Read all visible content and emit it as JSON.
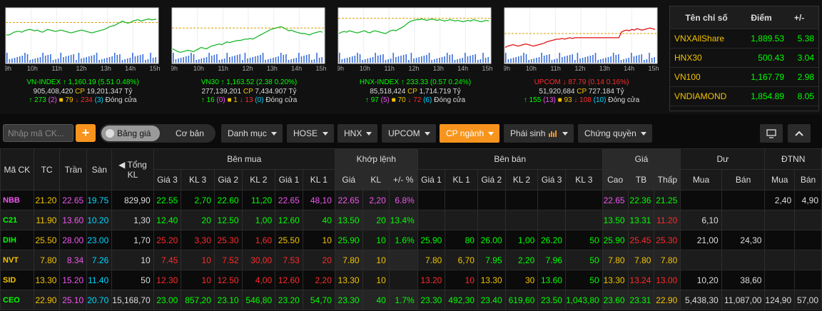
{
  "indices": [
    {
      "name": "VN-INDEX",
      "value": "1,160.19",
      "change": "(5.51 0.48%)",
      "dir": "up",
      "vol": "905,408,420",
      "cp": "CP",
      "amount": "19,201.347 Tỷ",
      "adv": "273",
      "ceil": "(2)",
      "unch": "79",
      "dec": "234",
      "floor": "(3)",
      "status": "Đóng cửa",
      "ref": 58,
      "series": [
        40,
        40,
        42,
        44,
        45,
        45,
        44,
        46,
        47,
        48,
        47,
        46,
        47,
        45,
        44,
        46,
        48,
        47,
        46,
        45,
        46,
        47,
        46,
        45,
        44,
        43,
        44,
        45,
        46,
        47,
        46,
        45,
        44,
        43,
        44,
        45,
        46,
        47,
        48,
        50,
        52,
        53,
        54,
        56,
        58,
        60,
        58,
        57,
        58,
        60,
        61,
        62,
        60,
        61,
        62,
        63,
        62,
        62,
        63
      ]
    },
    {
      "name": "VN30",
      "value": "1,163.52",
      "change": "(2.38 0.20%)",
      "dir": "up",
      "vol": "277,139,201",
      "cp": "CP",
      "amount": "7,434.907 Tỷ",
      "adv": "16",
      "ceil": "(0)",
      "unch": "1",
      "dec": "13",
      "floor": "(0)",
      "status": "Đóng cửa",
      "ref": 50,
      "series": [
        20,
        18,
        16,
        15,
        16,
        17,
        18,
        17,
        16,
        18,
        20,
        22,
        21,
        20,
        22,
        24,
        25,
        26,
        27,
        26,
        28,
        30,
        29,
        30,
        31,
        32,
        32,
        33,
        34,
        34,
        35,
        34,
        36,
        38,
        40,
        42,
        44,
        46,
        48,
        49,
        50,
        51,
        52,
        50,
        48,
        46,
        47,
        45,
        44,
        43,
        42,
        42,
        41,
        40,
        42,
        43,
        44,
        45,
        44
      ]
    },
    {
      "name": "HNX-INDEX",
      "value": "233.33",
      "change": "(0.57 0.24%)",
      "dir": "up",
      "vol": "85,518,424",
      "cp": "CP",
      "amount": "1,714.719 Tỷ",
      "adv": "97",
      "ceil": "(5)",
      "unch": "70",
      "dec": "72",
      "floor": "(6)",
      "status": "Đóng cửa",
      "ref": 64,
      "series": [
        42,
        44,
        45,
        44,
        46,
        45,
        44,
        43,
        44,
        45,
        46,
        44,
        43,
        45,
        46,
        45,
        44,
        43,
        42,
        44,
        46,
        47,
        46,
        48,
        50,
        52,
        55,
        58,
        60,
        61,
        62,
        62,
        63,
        62,
        61,
        62,
        63,
        62,
        61,
        62,
        61,
        60,
        61,
        62,
        61,
        60,
        61,
        60,
        59,
        60,
        61,
        60,
        62,
        61,
        60,
        59,
        60,
        61,
        60
      ]
    },
    {
      "name": "UPCOM",
      "value": "87.79",
      "change": "(0.14 0.16%)",
      "dir": "dn",
      "vol": "51,920,684",
      "cp": "CP",
      "amount": "727.184 Tỷ",
      "adv": "155",
      "ceil": "(13)",
      "unch": "93",
      "dec": "108",
      "floor": "(10)",
      "status": "Đóng cửa",
      "ref": 42,
      "series": [
        22,
        24,
        25,
        26,
        25,
        24,
        25,
        26,
        27,
        26,
        25,
        24,
        25,
        26,
        27,
        28,
        30,
        31,
        32,
        33,
        34,
        34,
        35,
        34,
        35,
        36,
        35,
        36,
        36,
        36,
        36,
        36,
        36,
        36,
        36,
        36,
        36,
        36,
        36,
        36,
        36,
        36,
        36,
        36,
        36,
        44,
        46,
        47,
        46,
        48,
        47,
        49,
        48,
        47,
        48,
        49,
        50,
        49,
        48
      ]
    }
  ],
  "time_labels": [
    "9h",
    "10h",
    "11h",
    "12h",
    "13h",
    "14h",
    "15h"
  ],
  "side_table": {
    "headers": [
      "Tên chỉ số",
      "Điểm",
      "+/-"
    ],
    "rows": [
      [
        "VNXAllShare",
        "1,889.53",
        "5.38"
      ],
      [
        "HNX30",
        "500.43",
        "3.04"
      ],
      [
        "VN100",
        "1,167.79",
        "2.98"
      ],
      [
        "VNDIAMOND",
        "1,854.89",
        "8.05"
      ]
    ]
  },
  "toolbar": {
    "search_placeholder": "Nhập mã CK...",
    "add_label": "+",
    "seg_active": "Bảng giá",
    "seg_other": "Cơ bản",
    "menus": [
      "Danh mục",
      "HOSE",
      "HNX",
      "UPCOM",
      "CP ngành",
      "Phái sinh",
      "Chứng quyền"
    ]
  },
  "table": {
    "groups": [
      "Mã CK",
      "TC",
      "Trần",
      "Sàn",
      "Tổng KL",
      "Bên mua",
      "Khớp lệnh",
      "Bên bán",
      "Giá",
      "Dư",
      "ĐTNN"
    ],
    "sub": [
      "Giá 3",
      "KL 3",
      "Giá 2",
      "KL 2",
      "Giá 1",
      "KL 1",
      "Giá",
      "KL",
      "+/- %",
      "Giá 1",
      "KL 1",
      "Giá 2",
      "KL 2",
      "Giá 3",
      "KL 3",
      "Cao",
      "TB",
      "Thấp",
      "Mua",
      "Bán",
      "Mua",
      "Bán"
    ],
    "rows": [
      [
        "NBB",
        "21.20",
        "22.65",
        "19.75",
        "829,90",
        "22.55",
        "2,70",
        "22.60",
        "11,20",
        "22.65",
        "48,10",
        "22.65",
        "2,20",
        "6.8%",
        "",
        "",
        "",
        "",
        "",
        "",
        "22.65",
        "22.36",
        "21.25",
        "",
        "",
        "2,40",
        "4,90"
      ],
      [
        "C21",
        "11.90",
        "13.60",
        "10.20",
        "1,30",
        "12.40",
        "20",
        "12.50",
        "1,00",
        "12.60",
        "40",
        "13.50",
        "20",
        "13.4%",
        "",
        "",
        "",
        "",
        "",
        "",
        "13.50",
        "13.31",
        "11.20",
        "6,10",
        "",
        "",
        ""
      ],
      [
        "DIH",
        "25.50",
        "28.00",
        "23.00",
        "1,70",
        "25.20",
        "3,30",
        "25.30",
        "1,60",
        "25.50",
        "10",
        "25.90",
        "10",
        "1.6%",
        "25.90",
        "80",
        "26.00",
        "1,00",
        "26.20",
        "50",
        "25.90",
        "25.45",
        "25.30",
        "21,00",
        "24,30",
        "",
        ""
      ],
      [
        "NVT",
        "7.80",
        "8.34",
        "7.26",
        "10",
        "7.45",
        "10",
        "7.52",
        "30,00",
        "7.53",
        "20",
        "7.80",
        "10",
        "",
        "7.80",
        "6,70",
        "7.95",
        "2,20",
        "7.96",
        "50",
        "7.80",
        "7.80",
        "7.80",
        "",
        "",
        "",
        ""
      ],
      [
        "SID",
        "13.30",
        "15.20",
        "11.40",
        "50",
        "12.30",
        "10",
        "12.50",
        "4,00",
        "12.60",
        "2,20",
        "13.30",
        "10",
        "",
        "13.20",
        "10",
        "13.30",
        "30",
        "13.60",
        "50",
        "13.30",
        "13.24",
        "13.00",
        "10,20",
        "38,60",
        "",
        ""
      ],
      [
        "CEO",
        "22.90",
        "25.10",
        "20.70",
        "15,168,70",
        "23.00",
        "857,20",
        "23.10",
        "546,80",
        "23.20",
        "54,70",
        "23.30",
        "40",
        "1.7%",
        "23.30",
        "492,30",
        "23.40",
        "619,60",
        "23.50",
        "1,043,80",
        "23.60",
        "23.31",
        "22.90",
        "5,438,30",
        "11,087,00",
        "124,90",
        "57,00"
      ]
    ]
  }
}
